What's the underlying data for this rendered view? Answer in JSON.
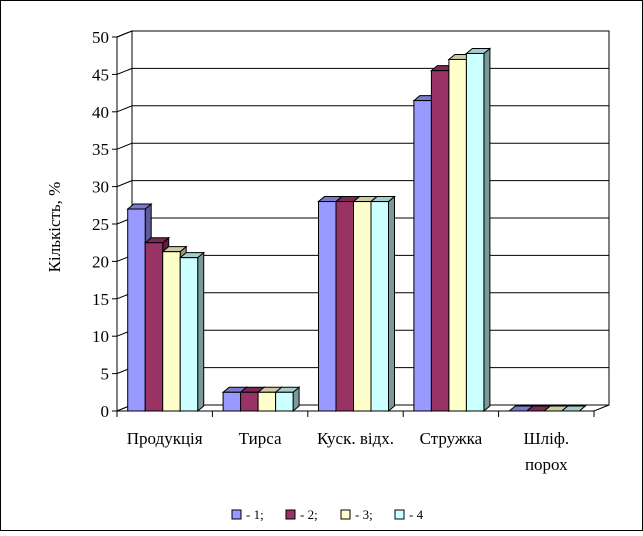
{
  "chart_data": {
    "type": "bar",
    "style": "3d-clustered-column",
    "ylabel": "Кількість, %",
    "ylim": [
      0,
      50
    ],
    "yticks": [
      0,
      5,
      10,
      15,
      20,
      25,
      30,
      35,
      40,
      45,
      50
    ],
    "grid": true,
    "legend_position": "bottom",
    "categories": [
      [
        "Продукція"
      ],
      [
        "Тирса"
      ],
      [
        "Куск. відх."
      ],
      [
        "Стружка"
      ],
      [
        "Шліф.",
        "порох"
      ]
    ],
    "series": [
      {
        "name": "- 1;",
        "color": "#9999ff",
        "values": [
          27,
          2.5,
          28,
          41.5,
          0
        ]
      },
      {
        "name": "- 2;",
        "color": "#993366",
        "values": [
          22.5,
          2.5,
          28,
          45.5,
          0
        ]
      },
      {
        "name": "- 3;",
        "color": "#ffffcc",
        "values": [
          21.3,
          2.5,
          28,
          47,
          0
        ]
      },
      {
        "name": "- 4",
        "color": "#ccffff",
        "values": [
          20.5,
          2.5,
          28,
          47.8,
          0
        ]
      }
    ]
  }
}
